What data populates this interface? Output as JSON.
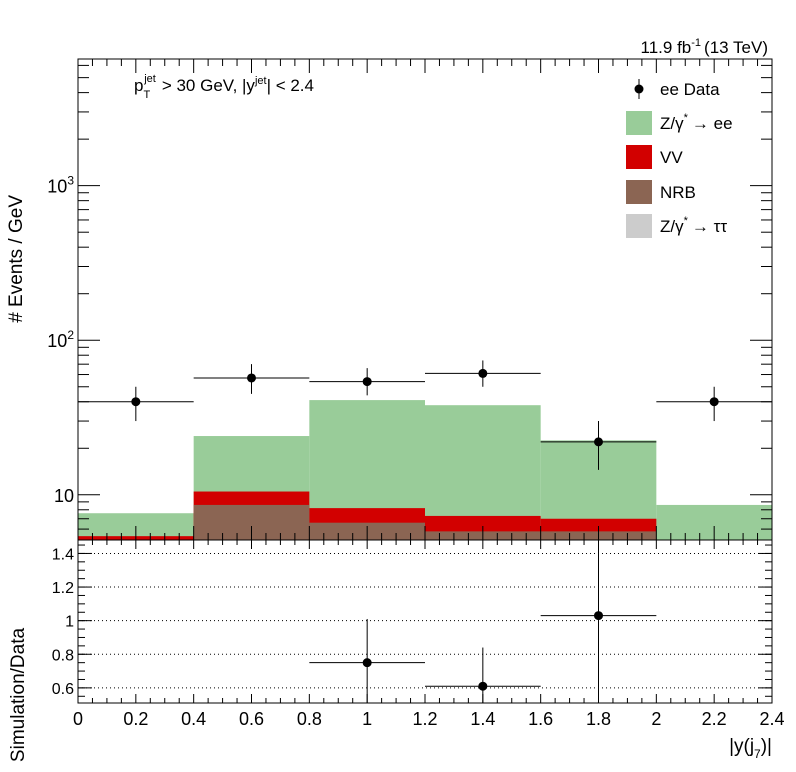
{
  "chart_data": {
    "type": "bar",
    "lumi_text": "11.9 fb",
    "lumi_sup": "-1",
    "lumi_energy": "(13 TeV)",
    "cut_text": {
      "pt_main": "p",
      "pt_sub": "T",
      "pt_sup": "jet",
      "pt_rest": "> 30 GeV,  |y",
      "y_sup": "jet",
      "y_rest": "| < 2.4"
    },
    "ylabel_top": "# Events / GeV",
    "ylabel_bottom": "Simulation/Data",
    "xlabel": "|y(j",
    "xlabel_sub": "7",
    "xlabel_end": ")|",
    "x_bins": [
      0,
      0.4,
      0.8,
      1.2,
      1.6,
      2.0,
      2.4
    ],
    "top_ylim": [
      5.1,
      6600
    ],
    "top_yscale": "log",
    "top_yticks": [
      {
        "base": "10",
        "exp": "",
        "value": 10
      },
      {
        "base": "10",
        "exp": "2",
        "value": 100
      },
      {
        "base": "10",
        "exp": "3",
        "value": 1000
      }
    ],
    "stack": [
      {
        "name": "NRB",
        "color": "#8b6553",
        "values": [
          5.0,
          8.6,
          6.6,
          5.8,
          5.8,
          5.0
        ]
      },
      {
        "name": "VV",
        "color": "#d20000",
        "values": [
          5.4,
          10.5,
          8.2,
          7.3,
          7.0,
          5.0
        ]
      },
      {
        "name": "Z/γ* → ee",
        "color": "#99cc99",
        "values": [
          7.6,
          24.0,
          41.0,
          38.0,
          22.5,
          8.6
        ]
      }
    ],
    "data": {
      "name": "ee Data",
      "x": [
        0.2,
        0.6,
        1.0,
        1.4,
        1.8,
        2.2
      ],
      "y": [
        40,
        57,
        54,
        61,
        22,
        40
      ],
      "y_low": [
        30,
        45,
        44,
        50,
        14.5,
        30
      ],
      "y_high": [
        50,
        70,
        66,
        74,
        30,
        50
      ]
    },
    "legend": {
      "placement": "top-right",
      "entries": [
        {
          "label": "ee Data",
          "kind": "marker",
          "color": "#000000"
        },
        {
          "label": "Z/γ",
          "sup": "*",
          "rest": "→ ee",
          "kind": "box",
          "color": "#99cc99"
        },
        {
          "label": "VV",
          "kind": "box",
          "color": "#d20000"
        },
        {
          "label": "NRB",
          "kind": "box",
          "color": "#8b6553"
        },
        {
          "label": "Z/γ",
          "sup": "*",
          "rest": "→ ττ",
          "kind": "box",
          "color": "#cccccc"
        }
      ]
    },
    "ratio": {
      "ylim": [
        0.51,
        1.48
      ],
      "yticks": [
        "0.6",
        "0.8",
        "1",
        "1.2",
        "1.4"
      ],
      "ytick_values": [
        0.6,
        0.8,
        1.0,
        1.2,
        1.4
      ],
      "grid": true,
      "points": [
        {
          "x": 1.0,
          "xerr": 0.2,
          "y": 0.75,
          "y_low": 0.51,
          "y_high": 1.01
        },
        {
          "x": 1.4,
          "xerr": 0.2,
          "y": 0.61,
          "y_low": 0.51,
          "y_high": 0.84
        },
        {
          "x": 1.8,
          "xerr": 0.2,
          "y": 1.03,
          "y_low": 0.51,
          "y_high": 1.48
        }
      ]
    },
    "x_ticklabels": [
      "0",
      "0.2",
      "0.4",
      "0.6",
      "0.8",
      "1",
      "1.2",
      "1.4",
      "1.6",
      "1.8",
      "2",
      "2.2",
      "2.4"
    ]
  }
}
